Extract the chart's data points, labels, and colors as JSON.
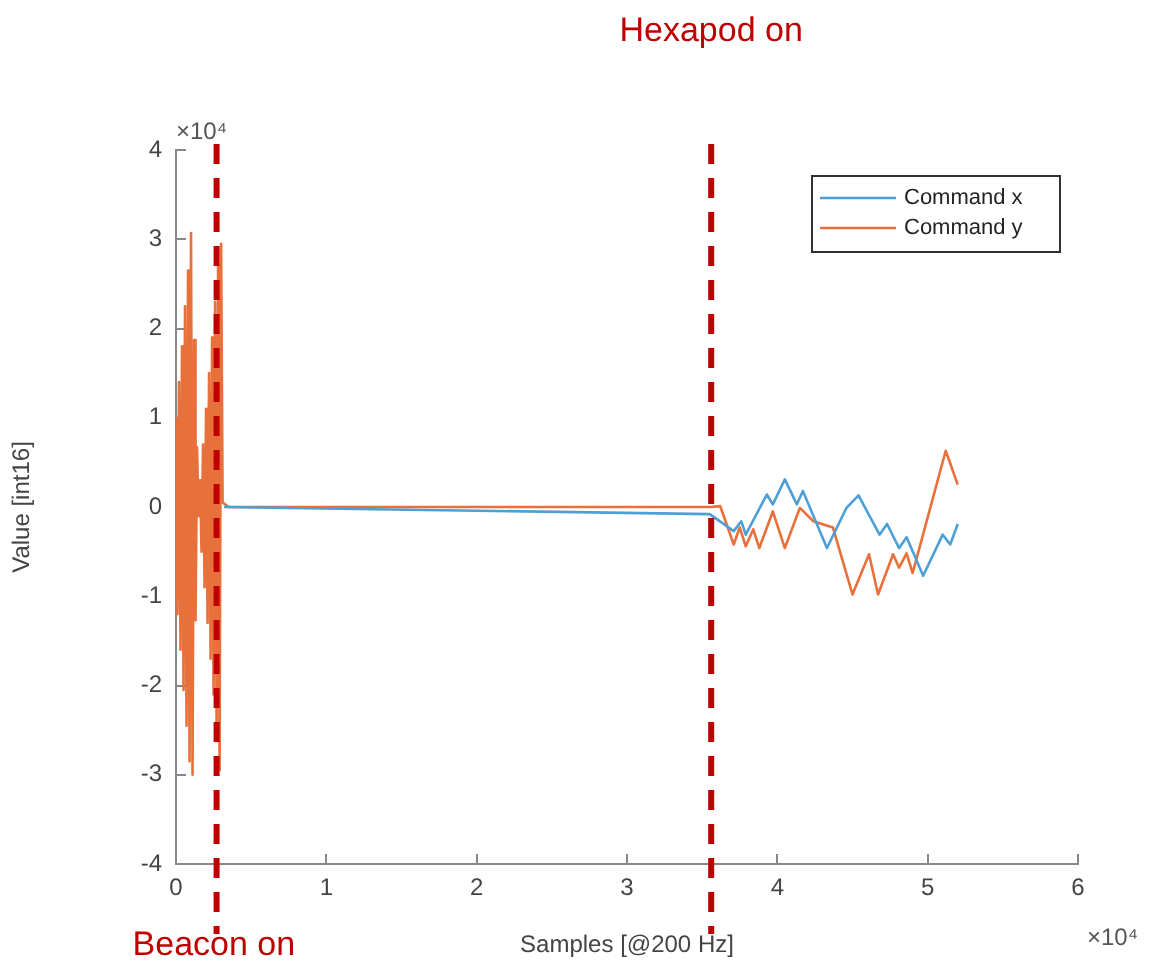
{
  "chart_data": {
    "type": "line",
    "xlabel": "Samples [@200 Hz]",
    "ylabel": "Value [int16]",
    "xlim": [
      0,
      6
    ],
    "ylim": [
      -4,
      4
    ],
    "xticks": [
      0,
      1,
      2,
      3,
      4,
      5,
      6
    ],
    "yticks": [
      -4,
      -3,
      -2,
      -1,
      0,
      1,
      2,
      3,
      4
    ],
    "grid": false,
    "legend": "top right",
    "marker": "none",
    "line_style": "solid",
    "series": [
      {
        "name": "Command x",
        "color": "#4d9fd8",
        "x": [
          0.32,
          3.55,
          3.71,
          3.76,
          3.79,
          3.93,
          3.97,
          4.05,
          4.13,
          4.17,
          4.33,
          4.46,
          4.54,
          4.68,
          4.73,
          4.81,
          4.86,
          4.97,
          5.1,
          5.15,
          5.2
        ],
        "values": [
          0,
          -0.08,
          -0.27,
          -0.16,
          -0.31,
          0.14,
          0.03,
          0.31,
          0.03,
          0.18,
          -0.46,
          -0.01,
          0.13,
          -0.31,
          -0.19,
          -0.46,
          -0.34,
          -0.77,
          -0.31,
          -0.42,
          -0.19
        ]
      },
      {
        "name": "Command y",
        "color": "#e8703a",
        "x": [
          0,
          0.01,
          0.02,
          0.03,
          0.04,
          0.05,
          0.06,
          0.07,
          0.08,
          0.09,
          0.1,
          0.11,
          0.12,
          0.13,
          0.14,
          0.15,
          0.16,
          0.17,
          0.18,
          0.19,
          0.2,
          0.21,
          0.22,
          0.23,
          0.24,
          0.25,
          0.26,
          0.27,
          0.28,
          0.29,
          0.3,
          0.31,
          0.35,
          3.56,
          3.62,
          3.71,
          3.75,
          3.79,
          3.84,
          3.88,
          3.97,
          4.05,
          4.15,
          4.24,
          4.37,
          4.5,
          4.61,
          4.67,
          4.77,
          4.81,
          4.86,
          4.9,
          5.12,
          5.2
        ],
        "values": [
          1,
          -1.2,
          1.4,
          -1.6,
          1.8,
          -2.05,
          2.25,
          -2.45,
          2.65,
          -2.85,
          3.07,
          -3,
          1.87,
          -1.27,
          0.67,
          -0.1,
          0.3,
          -0.5,
          0.7,
          -0.9,
          1.1,
          -1.3,
          1.5,
          -1.7,
          1.9,
          -2.1,
          2.3,
          -2.5,
          2.7,
          -2.95,
          2.95,
          0.05,
          0,
          0,
          0.01,
          -0.42,
          -0.23,
          -0.44,
          -0.25,
          -0.46,
          -0.05,
          -0.46,
          -0.01,
          -0.16,
          -0.23,
          -0.98,
          -0.53,
          -0.98,
          -0.53,
          -0.68,
          -0.52,
          -0.74,
          0.63,
          0.25
        ]
      }
    ],
    "ref_lines": [
      {
        "axis": "x",
        "value": 0.27,
        "label": "Beacon on",
        "color": "#c00000",
        "line_style": "dashed"
      },
      {
        "axis": "x",
        "value": 3.56,
        "label": "Hexapod on",
        "color": "#c00000",
        "line_style": "dashed"
      }
    ],
    "annotations": [
      "×10⁴",
      "×10⁴"
    ]
  }
}
